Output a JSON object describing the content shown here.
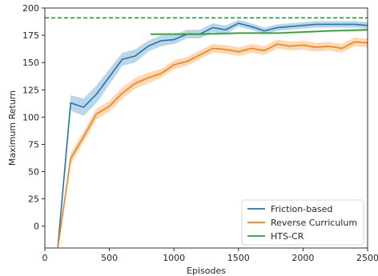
{
  "chart_data": {
    "type": "line",
    "xlabel": "Episodes",
    "ylabel": "Maximum Return",
    "xlim": [
      0,
      2500
    ],
    "ylim": [
      -20,
      200
    ],
    "xticks": [
      0,
      500,
      1000,
      1500,
      2000,
      2500
    ],
    "yticks": [
      0,
      25,
      50,
      75,
      100,
      125,
      150,
      175,
      200
    ],
    "legend_position": "lower-right",
    "reference_line": {
      "y": 191,
      "color": "#2ca02c",
      "style": "dashed"
    },
    "series": [
      {
        "name": "Friction-based",
        "color": "#1f77b4",
        "x": [
          100,
          200,
          300,
          400,
          500,
          600,
          700,
          800,
          900,
          1000,
          1100,
          1200,
          1300,
          1400,
          1500,
          1600,
          1700,
          1800,
          1900,
          2000,
          2100,
          2200,
          2300,
          2400,
          2500
        ],
        "y": [
          -20,
          113,
          109,
          121,
          137,
          153,
          156,
          165,
          170,
          171,
          176,
          176,
          182,
          180,
          186,
          183,
          179,
          182,
          183,
          184,
          185,
          185,
          185,
          185,
          184
        ],
        "band": [
          4,
          7,
          8,
          8,
          7,
          6,
          6,
          5,
          5,
          4,
          4,
          4,
          4,
          4,
          3,
          3,
          3,
          3,
          3,
          3,
          3,
          3,
          3,
          3,
          3
        ]
      },
      {
        "name": "Reverse Curriculum",
        "color": "#ff7f0e",
        "x": [
          100,
          200,
          300,
          400,
          500,
          600,
          700,
          800,
          900,
          1000,
          1100,
          1200,
          1300,
          1400,
          1500,
          1600,
          1700,
          1800,
          1900,
          2000,
          2100,
          2200,
          2300,
          2400,
          2500
        ],
        "y": [
          -20,
          62,
          82,
          103,
          110,
          122,
          131,
          136,
          140,
          148,
          151,
          157,
          163,
          162,
          160,
          163,
          161,
          167,
          165,
          166,
          164,
          165,
          163,
          169,
          168
        ],
        "band": [
          3,
          5,
          5,
          5,
          5,
          5,
          5,
          5,
          4,
          4,
          4,
          4,
          4,
          4,
          4,
          4,
          4,
          4,
          4,
          4,
          4,
          4,
          4,
          4,
          4
        ]
      },
      {
        "name": "HTS-CR",
        "color": "#2ca02c",
        "x": [
          820,
          1000,
          1200,
          1500,
          1800,
          2000,
          2200,
          2500
        ],
        "y": [
          176,
          176,
          176,
          177,
          177,
          178,
          179,
          180
        ],
        "band": [
          1,
          1,
          1,
          1,
          1,
          1,
          1,
          1
        ]
      }
    ]
  }
}
